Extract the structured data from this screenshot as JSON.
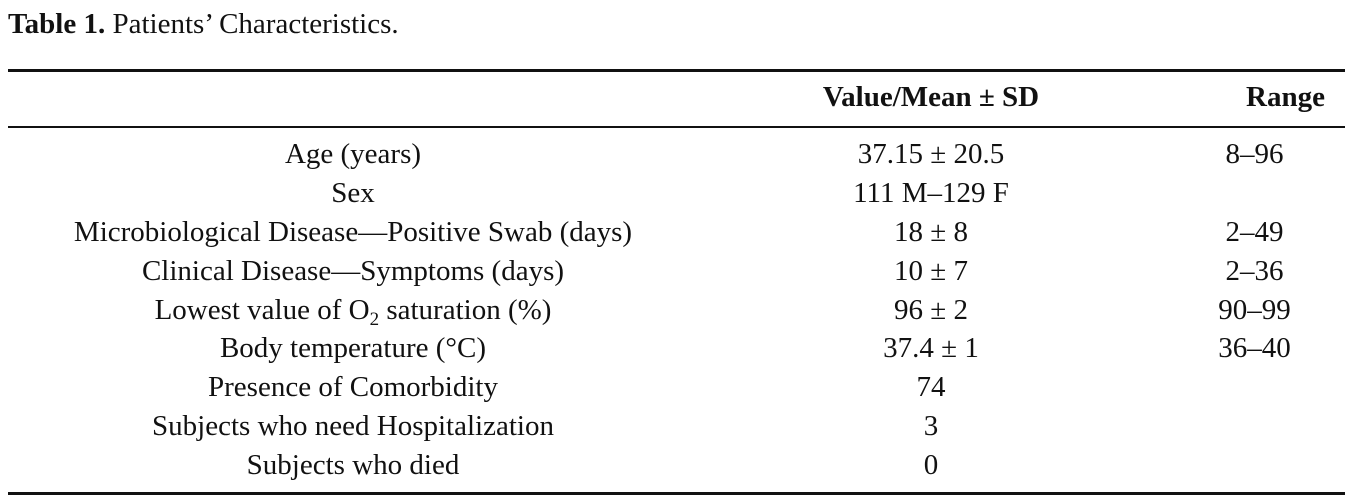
{
  "caption": {
    "label": "Table 1.",
    "text": "Patients’ Characteristics."
  },
  "table": {
    "headers": [
      "",
      "Value/Mean ± SD",
      "Range"
    ],
    "rows": [
      {
        "name": "Age (years)",
        "value": "37.15 ± 20.5",
        "range": "8–96"
      },
      {
        "name": "Sex",
        "value": "111 M–129 F",
        "range": ""
      },
      {
        "name": "Microbiological Disease—Positive Swab (days)",
        "value": "18 ± 8",
        "range": "2–49"
      },
      {
        "name": "Clinical Disease—Symptoms (days)",
        "value": "10 ± 7",
        "range": "2–36"
      },
      {
        "name_pre": "Lowest value of O",
        "name_sub": "2",
        "name_post": " saturation (%)",
        "value": "96 ± 2",
        "range": "90–99"
      },
      {
        "name": "Body temperature (°C)",
        "value": "37.4 ± 1",
        "range": "36–40"
      },
      {
        "name": "Presence of Comorbidity",
        "value": "74",
        "range": ""
      },
      {
        "name": "Subjects who need Hospitalization",
        "value": "3",
        "range": ""
      },
      {
        "name": "Subjects who died",
        "value": "0",
        "range": ""
      }
    ]
  }
}
